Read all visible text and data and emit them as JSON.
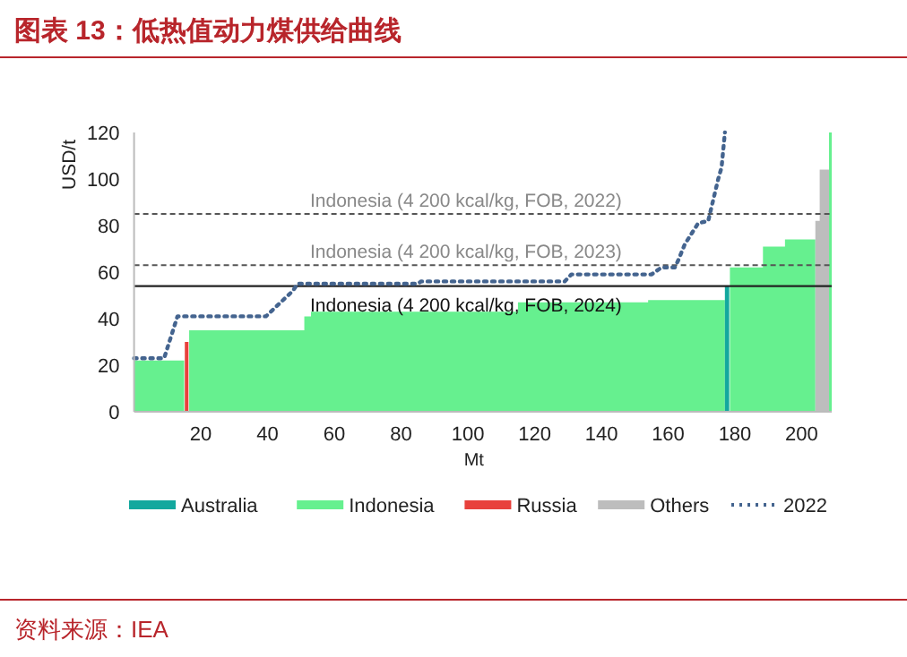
{
  "chart_data": {
    "type": "area",
    "title": "图表 13：低热值动力煤供给曲线",
    "xlabel": "Mt",
    "ylabel": "USD/t",
    "xlim": [
      0,
      209
    ],
    "xticks": [
      20,
      40,
      60,
      80,
      100,
      120,
      140,
      160,
      180,
      200
    ],
    "ylim": [
      0,
      120
    ],
    "yticks": [
      0,
      20,
      40,
      60,
      80,
      100,
      120
    ],
    "series": [
      {
        "name": "Australia",
        "color": "#13a89e",
        "x": [
          177,
          178.3
        ],
        "values": [
          54,
          54
        ]
      },
      {
        "name": "Indonesia",
        "color": "#66f08f",
        "x": [
          0,
          15,
          15,
          16.5,
          16.5,
          51,
          51,
          53,
          53,
          115,
          115,
          154,
          154,
          177,
          177,
          178.5,
          178.5,
          188.4,
          188.4,
          195,
          195,
          204.1,
          204.1,
          208.2,
          208.2,
          209
        ],
        "values": [
          22,
          22,
          0,
          0,
          35,
          35,
          41,
          41,
          43,
          43,
          47,
          47,
          48,
          48,
          0,
          0,
          62,
          62,
          71,
          71,
          74,
          74,
          0,
          0,
          120,
          120
        ]
      },
      {
        "name": "Russia",
        "color": "#e8413c",
        "x": [
          15.2,
          16.3
        ],
        "values": [
          30,
          30
        ]
      },
      {
        "name": "Others",
        "color": "#bdbdbd",
        "x": [
          204.1,
          205.4,
          205.4,
          208.2
        ],
        "values": [
          82,
          82,
          104,
          104
        ]
      },
      {
        "name": "2022",
        "type": "line",
        "line_style": "dotted",
        "marker": "none",
        "color": "#44648f",
        "x": [
          0,
          9,
          13,
          39.5,
          47.6,
          49,
          85,
          86,
          129,
          131,
          155,
          158,
          162,
          163,
          165,
          169,
          172,
          175,
          176,
          177
        ],
        "values": [
          23,
          23,
          41,
          41,
          52,
          55,
          55,
          56,
          56,
          59,
          59,
          62,
          62,
          65,
          72,
          81,
          82,
          100,
          105,
          120
        ]
      }
    ],
    "ref_lines": [
      {
        "axis": "y",
        "value": 85,
        "label": "Indonesia (4 200 kcal/kg, FOB, 2022)",
        "color": "#555555",
        "line_style": "dashed"
      },
      {
        "axis": "y",
        "value": 63,
        "label": "Indonesia (4 200 kcal/kg, FOB, 2023)",
        "color": "#555555",
        "line_style": "dashed"
      },
      {
        "axis": "y",
        "value": 54,
        "label": "Indonesia (4 200 kcal/kg, FOB, 2024)",
        "color": "#222222",
        "line_style": "solid"
      }
    ],
    "legend": "bottom",
    "grid": false,
    "annotations": [
      "资料来源：IEA"
    ]
  }
}
